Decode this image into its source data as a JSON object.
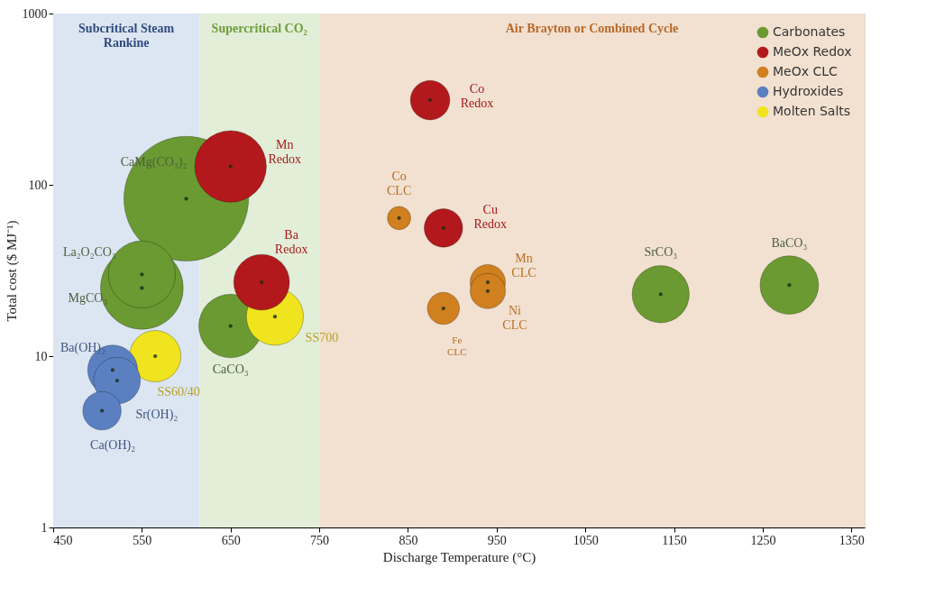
{
  "chart_data": {
    "type": "bubble",
    "xlabel": "Discharge Temperature (°C)",
    "ylabel": "Total cost ($ MJ⁻¹)",
    "xlim": [
      450,
      1365
    ],
    "xticks": [
      450,
      550,
      650,
      750,
      850,
      950,
      1050,
      1150,
      1250,
      1350
    ],
    "ylim": [
      1,
      1000
    ],
    "yticks": [
      1,
      10,
      100,
      1000
    ],
    "log": "y",
    "grid": false,
    "legend": "top right",
    "marker": "circle",
    "bands": [
      {
        "axis": "x",
        "from": 450,
        "to": 615,
        "label": "Subcritical Steam\nRankine",
        "color": "#dce6f2"
      },
      {
        "axis": "x",
        "from": 615,
        "to": 750,
        "label": "Supercritical CO₂",
        "color": "#e3eed8"
      },
      {
        "axis": "x",
        "from": 750,
        "to": 1365,
        "label": "Air Brayton or Combined Cycle",
        "color": "#f2e1d0"
      }
    ],
    "series": [
      {
        "name": "Carbonates",
        "color": "#6b9a32",
        "x": [
          600,
          550,
          550,
          650,
          1135,
          1280
        ],
        "values": [
          83,
          30,
          25,
          15,
          23,
          26
        ],
        "sizes": [
          1,
          0.29,
          0.44,
          0.26,
          0.21,
          0.22
        ]
      },
      {
        "name": "MeOx Redox",
        "color": "#b3191c",
        "x": [
          650,
          685,
          875,
          890
        ],
        "values": [
          128,
          27,
          312,
          56
        ],
        "sizes": [
          0.33,
          0.2,
          0.1,
          0.095
        ]
      },
      {
        "name": "MeOx CLC",
        "color": "#d0801f",
        "x": [
          840,
          940,
          940,
          890
        ],
        "values": [
          64,
          27,
          24,
          19
        ],
        "sizes": [
          0.035,
          0.08,
          0.08,
          0.066
        ]
      },
      {
        "name": "Hydroxides",
        "color": "#5b80c2",
        "x": [
          517,
          522,
          505
        ],
        "values": [
          8.3,
          7.2,
          4.8
        ],
        "sizes": [
          0.16,
          0.14,
          0.095
        ]
      },
      {
        "name": "Molten Salts",
        "color": "#f0e41e",
        "x": [
          565,
          700
        ],
        "values": [
          10,
          17
        ],
        "sizes": [
          0.17,
          0.21
        ]
      }
    ],
    "annotations": [
      {
        "text": "CaMg(CO₃)₂",
        "x": 600,
        "y": 83
      },
      {
        "text": "La₂O₂CO₃",
        "x": 550,
        "y": 30
      },
      {
        "text": "MgCO₃",
        "x": 550,
        "y": 25
      },
      {
        "text": "CaCO₃",
        "x": 650,
        "y": 15
      },
      {
        "text": "SrCO₃",
        "x": 1135,
        "y": 23
      },
      {
        "text": "BaCO₃",
        "x": 1280,
        "y": 26
      },
      {
        "text": "Mn\nRedox",
        "x": 650,
        "y": 128
      },
      {
        "text": "Ba\nRedox",
        "x": 685,
        "y": 27
      },
      {
        "text": "Co\nRedox",
        "x": 875,
        "y": 312
      },
      {
        "text": "Cu\nRedox",
        "x": 890,
        "y": 56
      },
      {
        "text": "Co\nCLC",
        "x": 840,
        "y": 64
      },
      {
        "text": "Mn\nCLC",
        "x": 940,
        "y": 27
      },
      {
        "text": "Ni\nCLC",
        "x": 940,
        "y": 24
      },
      {
        "text": "Fe\nCLC",
        "x": 890,
        "y": 19
      },
      {
        "text": "Ba(OH)₂",
        "x": 517,
        "y": 8.3
      },
      {
        "text": "Sr(OH)₂",
        "x": 522,
        "y": 7.2
      },
      {
        "text": "Ca(OH)₂",
        "x": 505,
        "y": 4.8
      },
      {
        "text": "SS60/40",
        "x": 565,
        "y": 10
      },
      {
        "text": "SS700",
        "x": 700,
        "y": 17
      }
    ]
  }
}
